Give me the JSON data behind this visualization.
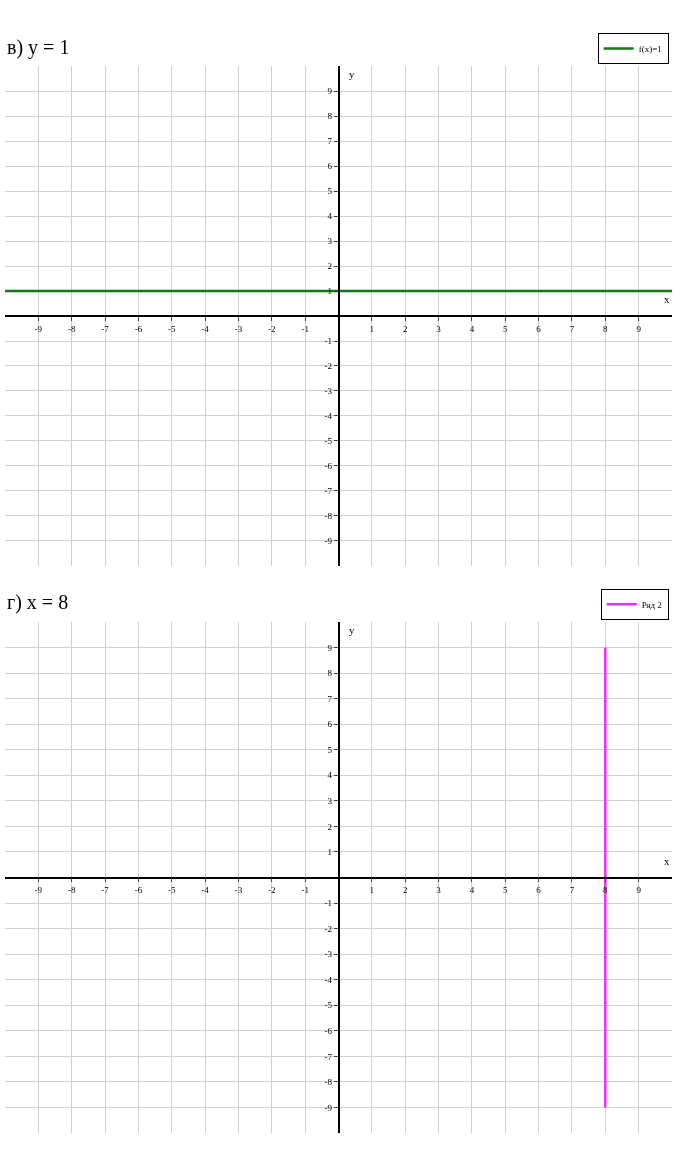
{
  "chart_data": [
    {
      "type": "line",
      "title": "в) y = 1",
      "xlabel": "x",
      "ylabel": "y",
      "x": [
        -10,
        10
      ],
      "series": [
        {
          "name": "f(x)=1",
          "color": "#127a12",
          "values": [
            1,
            1
          ]
        }
      ],
      "xlim": [
        -10,
        10
      ],
      "ylim": [
        -10,
        10
      ],
      "xticks": [
        -9,
        -8,
        -7,
        -6,
        -5,
        -4,
        -3,
        -2,
        -1,
        1,
        2,
        3,
        4,
        5,
        6,
        7,
        8,
        9
      ],
      "yticks": [
        -9,
        -8,
        -7,
        -6,
        -5,
        -4,
        -3,
        -2,
        -1,
        1,
        2,
        3,
        4,
        5,
        6,
        7,
        8,
        9
      ],
      "grid": true,
      "legend": "top right"
    },
    {
      "type": "line",
      "title": "г) x = 8",
      "xlabel": "x",
      "ylabel": "y",
      "x": [
        8,
        8
      ],
      "series": [
        {
          "name": "Ряд 2",
          "color": "#f030e8",
          "values": [
            -9,
            9
          ]
        }
      ],
      "xlim": [
        -10,
        10
      ],
      "ylim": [
        -10,
        10
      ],
      "xticks": [
        -9,
        -8,
        -7,
        -6,
        -5,
        -4,
        -3,
        -2,
        -1,
        1,
        2,
        3,
        4,
        5,
        6,
        7,
        8,
        9
      ],
      "yticks": [
        -9,
        -8,
        -7,
        -6,
        -5,
        -4,
        -3,
        -2,
        -1,
        1,
        2,
        3,
        4,
        5,
        6,
        7,
        8,
        9
      ],
      "grid": true,
      "legend": "top right"
    }
  ]
}
